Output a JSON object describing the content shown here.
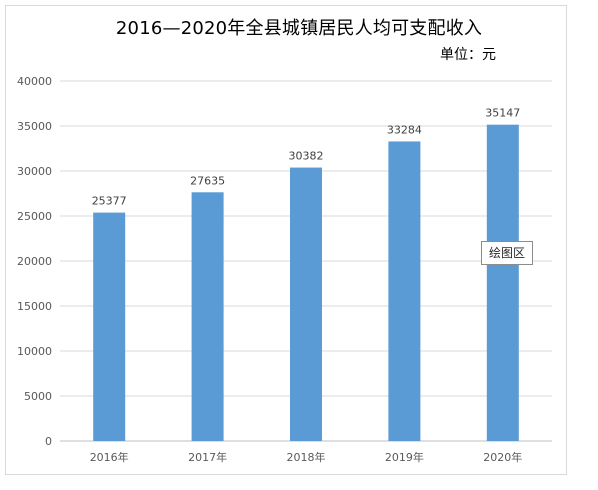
{
  "chart_data": {
    "type": "bar",
    "title": "2016—2020年全县城镇居民人均可支配收入",
    "unit": "单位：元",
    "categories": [
      "2016年",
      "2017年",
      "2018年",
      "2019年",
      "2020年"
    ],
    "values": [
      25377,
      27635,
      30382,
      33284,
      35147
    ],
    "value_labels": [
      "25377",
      "27635",
      "30382",
      "33284",
      "35147"
    ],
    "ylim": [
      0,
      40000
    ],
    "yticks": [
      "0",
      "5000",
      "10000",
      "15000",
      "20000",
      "25000",
      "30000",
      "35000",
      "40000"
    ],
    "ytick_values": [
      0,
      5000,
      10000,
      15000,
      20000,
      25000,
      30000,
      35000,
      40000
    ],
    "grid": true,
    "bar_color": "#5b9bd5"
  },
  "tooltip": "绘图区"
}
